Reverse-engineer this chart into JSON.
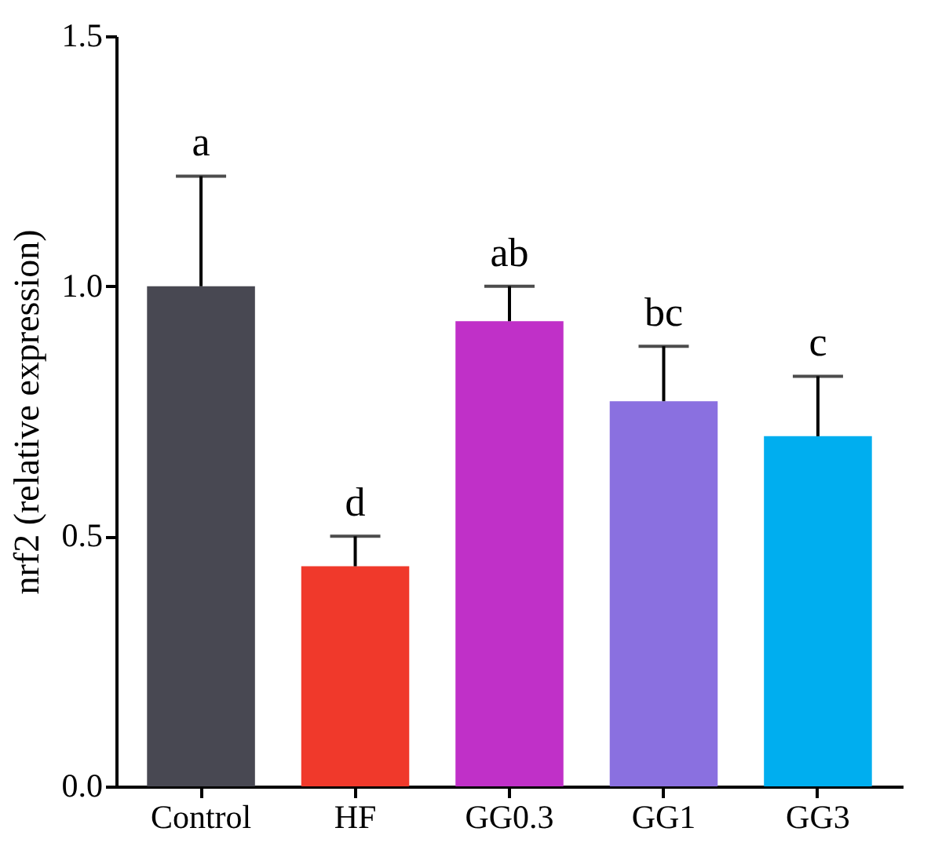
{
  "chart_data": {
    "type": "bar",
    "ylabel": "nrf2 (relative expression)",
    "categories": [
      "Control",
      "HF",
      "GG0.3",
      "GG1",
      "GG3"
    ],
    "values": [
      1.0,
      0.44,
      0.93,
      0.77,
      0.7
    ],
    "colors": [
      "#484852",
      "#f0392b",
      "#c030c8",
      "#8a70e0",
      "#00aeef"
    ],
    "errors": [
      [
        1.0,
        1.22
      ],
      [
        0.44,
        0.5
      ],
      [
        0.93,
        1.0
      ],
      [
        0.77,
        0.88
      ],
      [
        0.7,
        0.82
      ]
    ],
    "ylim": [
      0,
      1.5
    ],
    "yticks": [
      {
        "value": 0,
        "label": "0.0"
      },
      {
        "value": 0.5,
        "label": "0.5"
      },
      {
        "value": 1,
        "label": "1.0"
      },
      {
        "value": 1.5,
        "label": "1.5"
      }
    ],
    "annotations": [
      {
        "text": "a",
        "x": "Control",
        "y": 1.22
      },
      {
        "text": "d",
        "x": "HF",
        "y": 0.5
      },
      {
        "text": "ab",
        "x": "GG0.3",
        "y": 1.0
      },
      {
        "text": "bc",
        "x": "GG1",
        "y": 0.88
      },
      {
        "text": "c",
        "x": "GG3",
        "y": 0.82
      }
    ],
    "grid": false
  }
}
